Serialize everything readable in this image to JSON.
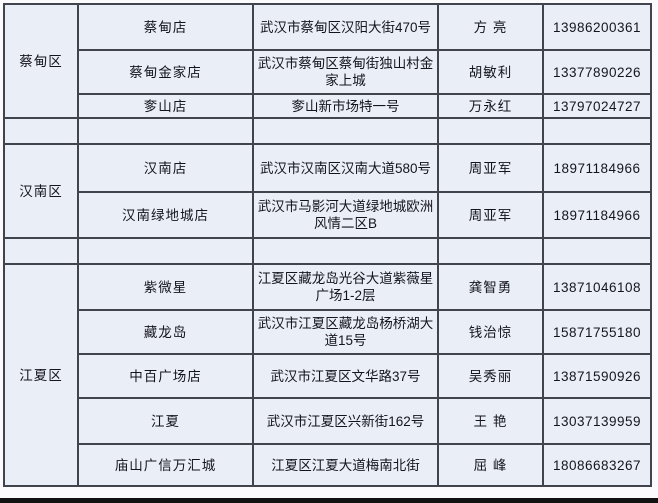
{
  "table": {
    "description_columns": [
      "district",
      "store",
      "address",
      "contact",
      "phone"
    ],
    "colors": {
      "cell_background": "#eaeef7",
      "grid_border": "#42444d",
      "text": "#14141f",
      "page_margin": "#fbfbfd",
      "bottom_strip": "#121212"
    },
    "sections": [
      {
        "district": "蔡甸区",
        "rows": [
          {
            "store": "蔡甸店",
            "address": "武汉市蔡甸区汉阳大街470号",
            "contact": "方 亮",
            "phone": "13986200361"
          },
          {
            "store": "蔡甸金家店",
            "address": "武汉市蔡甸区蔡甸街独山村金家上城",
            "contact": "胡敏利",
            "phone": "13377890226"
          },
          {
            "store": "奓山店",
            "address": "奓山新市场特一号",
            "contact": "万永红",
            "phone": "13797024727"
          }
        ]
      },
      {
        "district": "汉南区",
        "rows": [
          {
            "store": "汉南店",
            "address": "武汉市汉南区汉南大道580号",
            "contact": "周亚军",
            "phone": "18971184966"
          },
          {
            "store": "汉南绿地城店",
            "address": "武汉市马影河大道绿地城欧洲风情二区B",
            "contact": "周亚军",
            "phone": "18971184966"
          }
        ]
      },
      {
        "district": "江夏区",
        "rows": [
          {
            "store": "紫微星",
            "address": "江夏区藏龙岛光谷大道紫薇星广场1-2层",
            "contact": "龚智勇",
            "phone": "13871046108"
          },
          {
            "store": "藏龙岛",
            "address": "武汉市江夏区藏龙岛杨桥湖大道15号",
            "contact": "钱治惊",
            "phone": "15871755180"
          },
          {
            "store": "中百广场店",
            "address": "武汉市江夏区文华路37号",
            "contact": "吴秀丽",
            "phone": "13871590926"
          },
          {
            "store": "江夏",
            "address": "武汉市江夏区兴新街162号",
            "contact": "王 艳",
            "phone": "13037139959"
          },
          {
            "store": "庙山广信万汇城",
            "address": "江夏区江夏大道梅南北街",
            "contact": "屈 峰",
            "phone": "18086683267"
          }
        ]
      }
    ]
  }
}
